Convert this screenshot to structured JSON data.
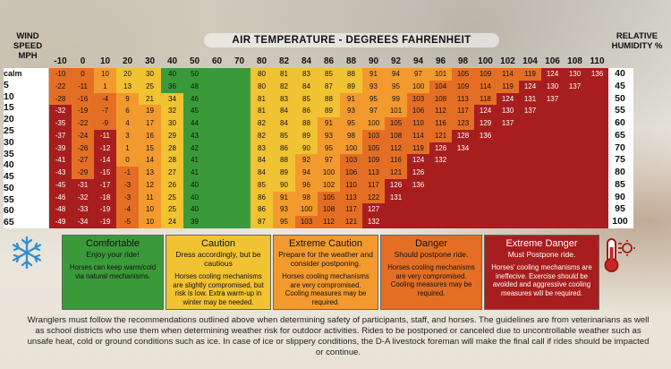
{
  "titles": {
    "wind": "WIND SPEED MPH",
    "temp": "AIR TEMPERATURE - DEGREES FAHRENHEIT",
    "humidity": "RELATIVE HUMIDITY %"
  },
  "temps": [
    "-10",
    "0",
    "10",
    "20",
    "30",
    "40",
    "50",
    "60",
    "70",
    "80",
    "82",
    "84",
    "86",
    "88",
    "90",
    "92",
    "94",
    "96",
    "98",
    "100",
    "102",
    "104",
    "106",
    "108",
    "110"
  ],
  "wind_rows": [
    "calm",
    "5",
    "10",
    "15",
    "20",
    "25",
    "30",
    "35",
    "40",
    "45",
    "50",
    "55",
    "60",
    "65"
  ],
  "humidity_rows": [
    "40",
    "45",
    "50",
    "55",
    "60",
    "65",
    "70",
    "75",
    "80",
    "85",
    "90",
    "95",
    "100"
  ],
  "cold_values": [
    [
      "-10",
      "0",
      "10",
      "20",
      "30",
      "40",
      "50"
    ],
    [
      "-22",
      "-11",
      "1",
      "13",
      "25",
      "36",
      "48"
    ],
    [
      "-28",
      "-16",
      "-4",
      "9",
      "21",
      "34",
      "46"
    ],
    [
      "-32",
      "-19",
      "-7",
      "6",
      "19",
      "32",
      "45"
    ],
    [
      "-35",
      "-22",
      "-9",
      "4",
      "17",
      "30",
      "44"
    ],
    [
      "-37",
      "-24",
      "-11",
      "3",
      "16",
      "29",
      "43"
    ],
    [
      "-39",
      "-26",
      "-12",
      "1",
      "15",
      "28",
      "42"
    ],
    [
      "-41",
      "-27",
      "-14",
      "0",
      "14",
      "28",
      "41"
    ],
    [
      "-43",
      "-29",
      "-15",
      "-1",
      "13",
      "27",
      "41"
    ],
    [
      "-45",
      "-31",
      "-17",
      "-3",
      "12",
      "26",
      "40"
    ],
    [
      "-46",
      "-32",
      "-18",
      "-3",
      "11",
      "25",
      "40"
    ],
    [
      "-48",
      "-33",
      "-19",
      "-4",
      "10",
      "25",
      "40"
    ],
    [
      "-49",
      "-34",
      "-19",
      "-5",
      "10",
      "24",
      "39"
    ]
  ],
  "heat_values": [
    [
      "80",
      "81",
      "83",
      "85",
      "88",
      "91",
      "94",
      "97",
      "101",
      "105",
      "109",
      "114",
      "119",
      "124",
      "130",
      "136"
    ],
    [
      "80",
      "82",
      "84",
      "87",
      "89",
      "93",
      "95",
      "100",
      "104",
      "109",
      "114",
      "119",
      "124",
      "130",
      "137"
    ],
    [
      "81",
      "83",
      "85",
      "88",
      "91",
      "95",
      "99",
      "103",
      "108",
      "113",
      "118",
      "124",
      "131",
      "137"
    ],
    [
      "81",
      "84",
      "86",
      "89",
      "93",
      "97",
      "101",
      "106",
      "112",
      "117",
      "124",
      "130",
      "137"
    ],
    [
      "82",
      "84",
      "88",
      "91",
      "95",
      "100",
      "105",
      "110",
      "116",
      "123",
      "129",
      "137"
    ],
    [
      "82",
      "85",
      "89",
      "93",
      "98",
      "103",
      "108",
      "114",
      "121",
      "128",
      "136"
    ],
    [
      "83",
      "86",
      "90",
      "95",
      "100",
      "105",
      "112",
      "119",
      "126",
      "134"
    ],
    [
      "84",
      "88",
      "92",
      "97",
      "103",
      "109",
      "116",
      "124",
      "132"
    ],
    [
      "84",
      "89",
      "94",
      "100",
      "106",
      "113",
      "121",
      "126"
    ],
    [
      "85",
      "90",
      "96",
      "102",
      "110",
      "117",
      "126",
      "136"
    ],
    [
      "86",
      "91",
      "98",
      "105",
      "113",
      "122",
      "131"
    ],
    [
      "86",
      "93",
      "100",
      "108",
      "117",
      "127"
    ],
    [
      "87",
      "95",
      "103",
      "112",
      "121",
      "132"
    ]
  ],
  "legend": [
    {
      "title": "Comfortable",
      "sub": "Enjoy your ride!",
      "body": "Horses can keep warm/cold via natural mechanisms.",
      "color": "#3a9a3a"
    },
    {
      "title": "Caution",
      "sub": "Dress accordingly, but be cautious",
      "body": "Horses cooling mechanisms are slightly compromised, but risk is low. Extra warm-up in winter may be needed.",
      "color": "#f1c232"
    },
    {
      "title": "Extreme Caution",
      "sub": "Prepare for the weather and consider postponing.",
      "body": "Horses cooling mechanisms are very compromised. Cooling measures may be required.",
      "color": "#f39a2f"
    },
    {
      "title": "Danger",
      "sub": "Should postpone ride.",
      "body": "Horses cooling mechanisms are very compromised. Cooling measures may be required.",
      "color": "#e46f24"
    },
    {
      "title": "Extreme Danger",
      "sub": "Must Postpone ride.",
      "body": "Horses' cooling mechanisms are ineffecive. Exercise should be avoided and aggressive cooling measures will be required.",
      "color": "#a81e1e"
    }
  ],
  "colors": {
    "comfortable": "#3a9a3a",
    "caution": "#f1c232",
    "extreme_caution": "#f39a2f",
    "danger": "#e46f24",
    "extreme_danger": "#a81e1e",
    "green_light": "#5cb43e"
  },
  "footer": "Wranglers must follow the recommendations outlined above when determining safety of participants, staff, and horses. The guidelines are from veterinarians as well as school districts who use them when determining weather risk for outdoor activities. Rides to be postponed or canceled due to uncontrollable weather such as unsafe heat, cold or ground conditions such as ice. In case of ice or slippery conditions, the D-A livestock foreman will make the final call if rides should be impacted or continue.",
  "icons": {
    "cold": "snowflake-icon",
    "heat": "thermometer-icon"
  }
}
